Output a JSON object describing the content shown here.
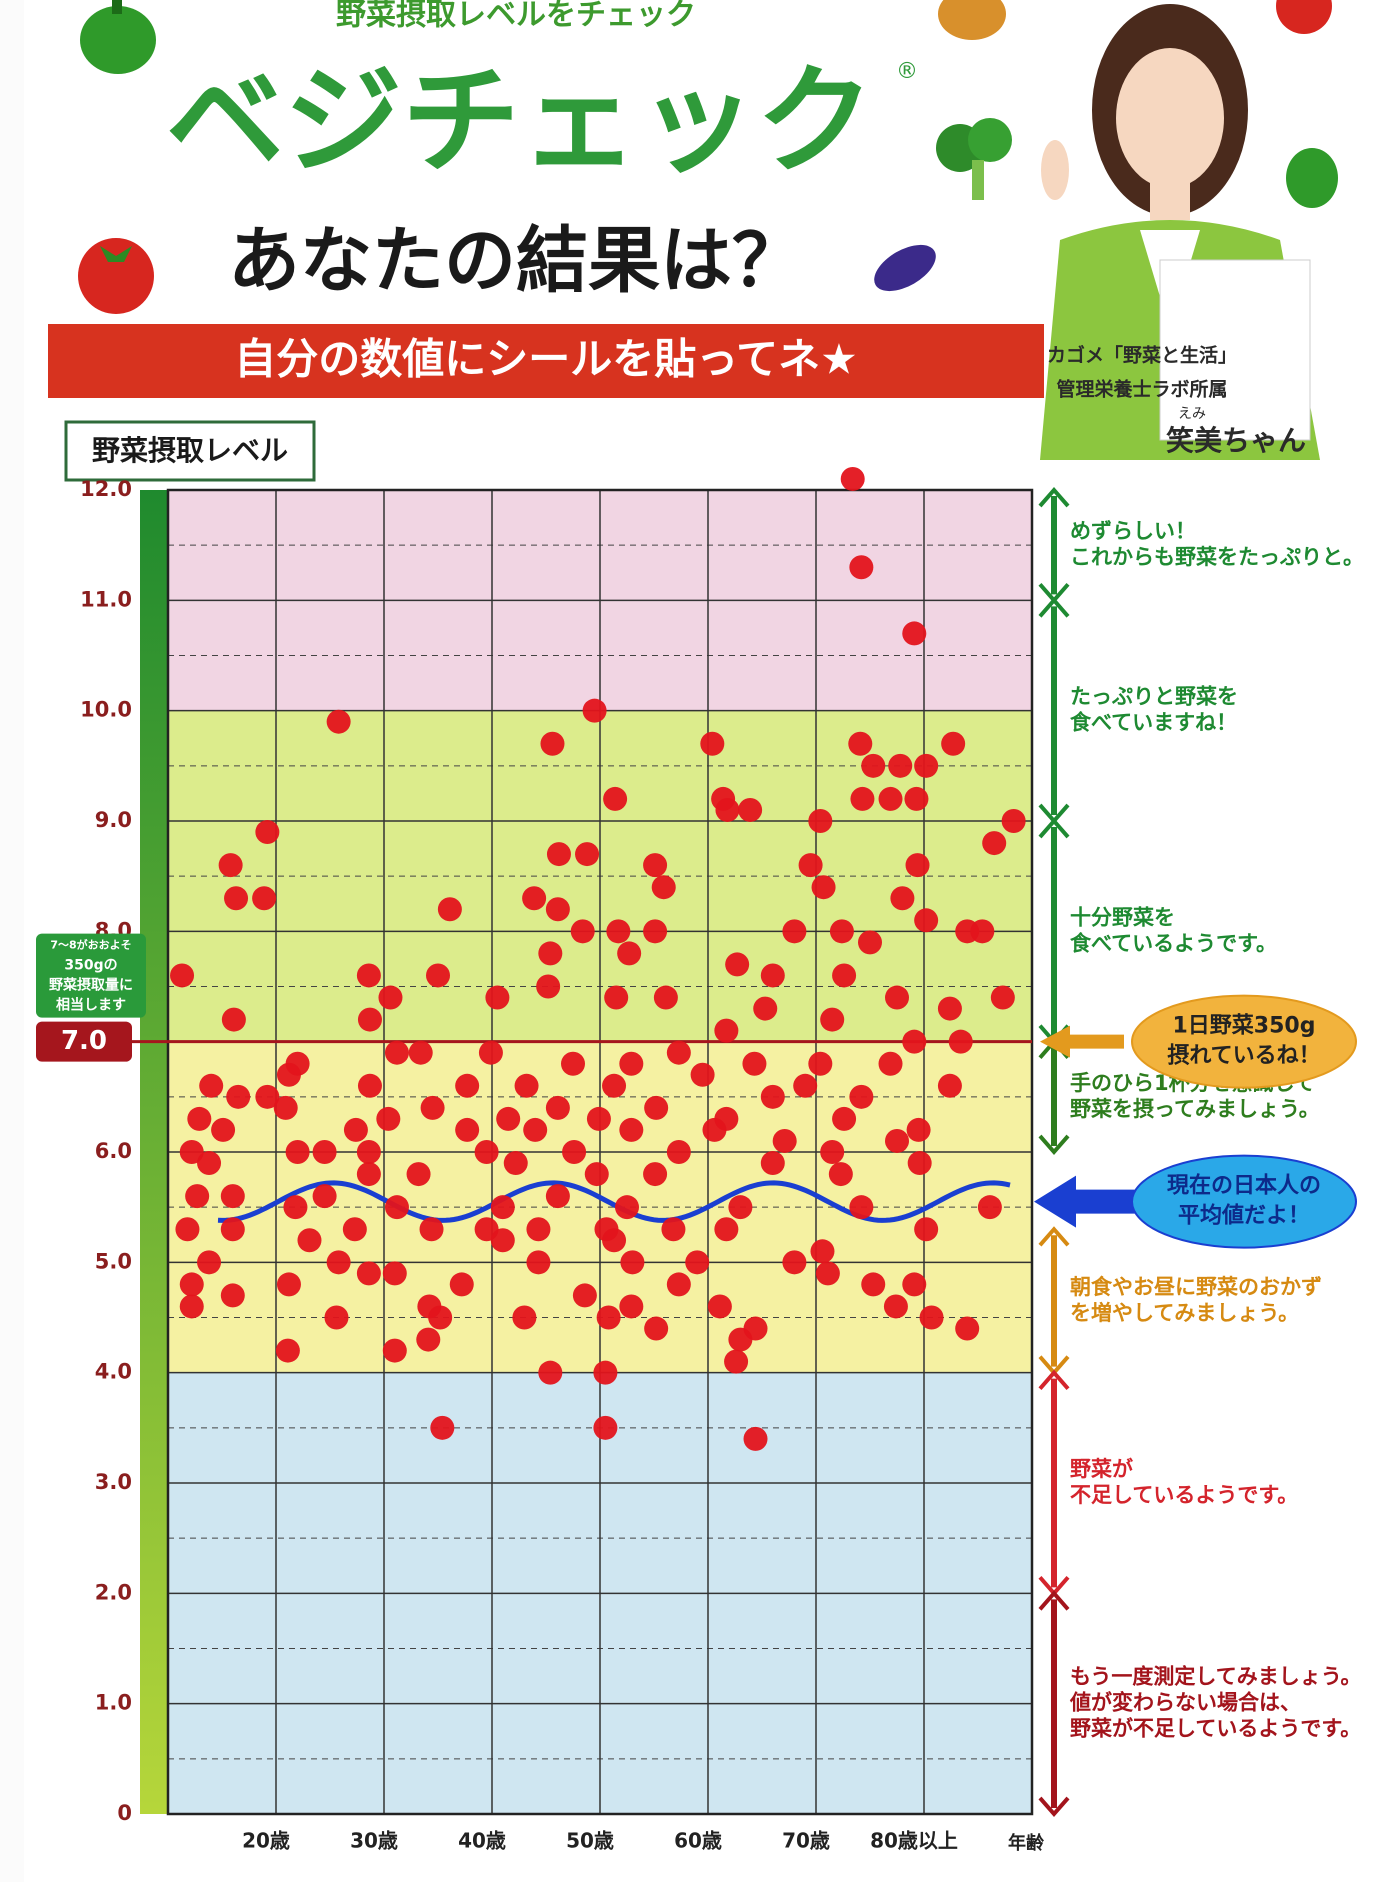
{
  "header": {
    "kicker": "野菜摂取レベルをチェック",
    "brand": "ベジチェック",
    "registered": "®",
    "question": "あなたの結果は？",
    "instruction": "自分の数値にシールを貼ってネ★"
  },
  "character": {
    "affiliation": [
      "カゴメ「野菜と生活」",
      "管理栄養士ラボ所属"
    ],
    "ruby": "えみ",
    "name": "笑美ちゃん"
  },
  "chart_data": {
    "type": "scatter",
    "y_label": "野菜摂取レベル",
    "x_label": "年齢",
    "color": "#e3141c",
    "x": [
      73.4,
      74.2,
      79.1,
      25.8,
      49.5,
      45.6,
      60.4,
      74.1,
      82.7,
      75.3,
      77.8,
      80.2,
      51.4,
      61.4,
      74.3,
      76.9,
      79.3,
      63.9,
      61.8,
      19.2,
      70.4,
      88.3,
      86.5,
      46.2,
      48.8,
      15.8,
      55.1,
      69.5,
      79.4,
      55.9,
      70.7,
      16.3,
      18.9,
      43.9,
      36.1,
      46.1,
      78.0,
      80.2,
      48.4,
      51.7,
      55.1,
      68.0,
      72.4,
      75.0,
      84.0,
      85.4,
      11.3,
      28.6,
      35.0,
      45.4,
      52.7,
      62.7,
      66.0,
      30.6,
      40.5,
      45.2,
      51.5,
      56.1,
      65.3,
      72.6,
      77.5,
      82.4,
      87.3,
      16.1,
      28.7,
      61.7,
      71.5,
      79.1,
      83.4,
      31.2,
      33.4,
      22.0,
      39.9,
      47.5,
      52.9,
      57.3,
      64.3,
      70.4,
      76.9,
      21.2,
      14.0,
      28.7,
      37.7,
      43.2,
      51.3,
      59.5,
      69.0,
      82.4,
      19.2,
      16.5,
      34.5,
      46.1,
      55.2,
      66.0,
      74.2,
      12.9,
      20.9,
      30.4,
      41.5,
      49.9,
      61.7,
      72.6,
      79.5,
      15.1,
      27.4,
      37.7,
      44.0,
      52.9,
      60.6,
      67.1,
      77.5,
      12.2,
      22.0,
      28.6,
      39.5,
      47.6,
      57.3,
      71.5,
      24.5,
      13.8,
      28.6,
      33.2,
      42.2,
      49.7,
      55.1,
      66.0,
      72.3,
      79.6,
      12.7,
      16.0,
      21.8,
      24.5,
      31.2,
      41.0,
      46.1,
      52.5,
      63.0,
      74.2,
      86.1,
      27.3,
      34.4,
      39.5,
      44.3,
      50.6,
      56.8,
      61.7,
      80.2,
      11.8,
      16.0,
      23.1,
      41.0,
      51.3,
      70.6,
      13.8,
      25.8,
      31.0,
      44.3,
      53.0,
      59.0,
      68.0,
      28.6,
      12.2,
      21.2,
      37.2,
      48.6,
      57.3,
      71.1,
      16.0,
      75.3,
      79.1,
      12.2,
      25.6,
      34.2,
      43.0,
      52.9,
      61.1,
      77.4,
      80.7,
      35.2,
      50.8,
      55.2,
      64.4,
      84.0,
      63.0,
      34.1,
      21.1,
      31.0,
      62.6,
      45.4,
      50.5,
      35.4,
      50.5,
      64.4
    ],
    "values": [
      12.1,
      11.3,
      10.7,
      9.9,
      10.0,
      9.7,
      9.7,
      9.7,
      9.7,
      9.5,
      9.5,
      9.5,
      9.2,
      9.2,
      9.2,
      9.2,
      9.2,
      9.1,
      9.1,
      8.9,
      9.0,
      9.0,
      8.8,
      8.7,
      8.7,
      8.6,
      8.6,
      8.6,
      8.6,
      8.4,
      8.4,
      8.3,
      8.3,
      8.3,
      8.2,
      8.2,
      8.3,
      8.1,
      8.0,
      8.0,
      8.0,
      8.0,
      8.0,
      7.9,
      8.0,
      8.0,
      7.6,
      7.6,
      7.6,
      7.8,
      7.8,
      7.7,
      7.6,
      7.4,
      7.4,
      7.5,
      7.4,
      7.4,
      7.3,
      7.6,
      7.4,
      7.3,
      7.4,
      7.2,
      7.2,
      7.1,
      7.2,
      7.0,
      7.0,
      6.9,
      6.9,
      6.8,
      6.9,
      6.8,
      6.8,
      6.9,
      6.8,
      6.8,
      6.8,
      6.7,
      6.6,
      6.6,
      6.6,
      6.6,
      6.6,
      6.7,
      6.6,
      6.6,
      6.5,
      6.5,
      6.4,
      6.4,
      6.4,
      6.5,
      6.5,
      6.3,
      6.4,
      6.3,
      6.3,
      6.3,
      6.3,
      6.3,
      6.2,
      6.2,
      6.2,
      6.2,
      6.2,
      6.2,
      6.2,
      6.1,
      6.1,
      6.0,
      6.0,
      6.0,
      6.0,
      6.0,
      6.0,
      6.0,
      6.0,
      5.9,
      5.8,
      5.8,
      5.9,
      5.8,
      5.8,
      5.9,
      5.8,
      5.9,
      5.6,
      5.6,
      5.5,
      5.6,
      5.5,
      5.5,
      5.6,
      5.5,
      5.5,
      5.5,
      5.5,
      5.3,
      5.3,
      5.3,
      5.3,
      5.3,
      5.3,
      5.3,
      5.3,
      5.3,
      5.3,
      5.2,
      5.2,
      5.2,
      5.1,
      5.0,
      5.0,
      4.9,
      5.0,
      5.0,
      5.0,
      5.0,
      4.9,
      4.8,
      4.8,
      4.8,
      4.7,
      4.8,
      4.9,
      4.7,
      4.8,
      4.8,
      4.6,
      4.5,
      4.6,
      4.5,
      4.6,
      4.6,
      4.6,
      4.5,
      4.5,
      4.5,
      4.4,
      4.4,
      4.4,
      4.3,
      4.3,
      4.2,
      4.2,
      4.1,
      4.0,
      4.0,
      3.5,
      3.5,
      3.4
    ],
    "xlim": [
      10,
      90
    ],
    "ylim": [
      0,
      12
    ],
    "xticks": [
      {
        "value": 20,
        "label": "20歳"
      },
      {
        "value": 30,
        "label": "30歳"
      },
      {
        "value": 40,
        "label": "40歳"
      },
      {
        "value": 50,
        "label": "50歳"
      },
      {
        "value": 60,
        "label": "60歳"
      },
      {
        "value": 70,
        "label": "70歳"
      },
      {
        "value": 80,
        "label": "80歳以上"
      }
    ],
    "yticks": [
      0,
      {
        "value": 1,
        "label": "1.0"
      },
      {
        "value": 2,
        "label": "2.0"
      },
      {
        "value": 3,
        "label": "3.0"
      },
      {
        "value": 4,
        "label": "4.0"
      },
      {
        "value": 5,
        "label": "5.0"
      },
      {
        "value": 6,
        "label": "6.0"
      },
      {
        "value": 7,
        "label": "7.0"
      },
      {
        "value": 8,
        "label": "8.0"
      },
      {
        "value": 9,
        "label": "9.0"
      },
      {
        "value": 10,
        "label": "10.0"
      },
      {
        "value": 11,
        "label": "11.0"
      },
      {
        "value": 12,
        "label": "12.0"
      }
    ],
    "grid": true,
    "bands": [
      {
        "from": 0,
        "to": 4,
        "color": "#cfe6f1"
      },
      {
        "from": 4,
        "to": 7,
        "color": "#f5f1a2"
      },
      {
        "from": 7,
        "to": 10,
        "color": "#dcec8c"
      },
      {
        "from": 10,
        "to": 12,
        "color": "#f1d5e3"
      }
    ],
    "reference_line": {
      "value": 7,
      "label": "7.0",
      "color": "#a5161d",
      "note": [
        "7～8がおおよそ",
        "350gの",
        "野菜摂取量に",
        "相当します"
      ]
    },
    "average_line": {
      "value": 5.55,
      "color": "#1a3fd1"
    },
    "ranges": [
      {
        "from": 11,
        "to": 12,
        "color": "#1e8a32",
        "lines": [
          "めずらしい！",
          "これからも野菜をたっぷりと。"
        ]
      },
      {
        "from": 9,
        "to": 11,
        "color": "#1e8a32",
        "lines": [
          "たっぷりと野菜を",
          "食べていますね！"
        ]
      },
      {
        "from": 7,
        "to": 9,
        "color": "#1e8a32",
        "lines": [
          "十分野菜を",
          "食べているようです。"
        ]
      },
      {
        "from": 6,
        "to": 7,
        "color": "#2e7d1e",
        "lines": [
          "手のひら1杯分を意識して",
          "野菜を摂ってみましょう。"
        ]
      },
      {
        "from": 4,
        "to": 5.3,
        "color": "#d68a12",
        "lines": [
          "朝食やお昼に野菜のおかず",
          "を増やしてみましょう。"
        ]
      },
      {
        "from": 2,
        "to": 4,
        "color": "#d4242c",
        "lines": [
          "野菜が",
          "不足しているようです。"
        ]
      },
      {
        "from": 0,
        "to": 2,
        "color": "#a3141c",
        "lines": [
          "もう一度測定してみましょう。",
          "値が変わらない場合は、",
          "野菜が不足しているようです。"
        ]
      }
    ],
    "callouts": [
      {
        "value": 7,
        "color": "#e39a1e",
        "fill": "#f2b33d",
        "lines": [
          "1日野菜350g",
          "摂れているね！"
        ]
      },
      {
        "value": 5.55,
        "color": "#1a3fd1",
        "fill": "#2aa8e8",
        "lines": [
          "現在の日本人の",
          "平均値だよ！"
        ]
      }
    ]
  }
}
